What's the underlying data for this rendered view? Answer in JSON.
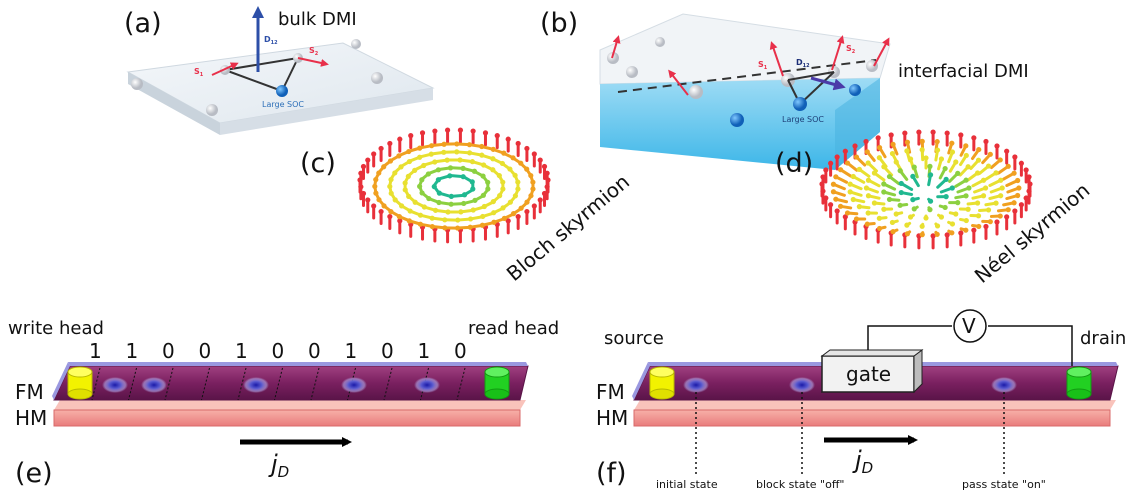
{
  "panels": {
    "a": {
      "label": "(a)",
      "title": "bulk DMI",
      "d_label": "D",
      "d_sub": "12",
      "s1": "S",
      "s1_sub": "1",
      "s2": "S",
      "s2_sub": "2",
      "soc": "Large SOC"
    },
    "b": {
      "label": "(b)",
      "title": "interfacial DMI",
      "d_label": "D",
      "d_sub": "12",
      "s1": "S",
      "s1_sub": "1",
      "s2": "S",
      "s2_sub": "2",
      "soc": "Large SOC"
    },
    "c": {
      "label": "(c)",
      "caption": "Bloch skyrmion"
    },
    "d": {
      "label": "(d)",
      "caption": "Néel skyrmion"
    },
    "e": {
      "label": "(e)",
      "write": "write head",
      "read": "read head",
      "bits": [
        "1",
        "1",
        "0",
        "0",
        "1",
        "0",
        "0",
        "1",
        "0",
        "1",
        "0"
      ],
      "fm": "FM",
      "hm": "HM",
      "current": "j",
      "current_sub": "D"
    },
    "f": {
      "label": "(f)",
      "source": "source",
      "drain": "drain",
      "gate": "gate",
      "voltmeter": "V",
      "fm": "FM",
      "hm": "HM",
      "current": "j",
      "current_sub": "D",
      "states": [
        "initial state",
        "block state \"off\"",
        "pass state \"on\""
      ]
    }
  },
  "colors": {
    "fm_track": "#7a2a6a",
    "fm_top": "#8c8ad6",
    "hm_layer": "#f08a8a",
    "write_head": "#f2f200",
    "read_head": "#20d020",
    "skyrmion": "#2a2ab0",
    "spin_arrow": "#e8304a",
    "dmi_arrow": "#2d4fa8",
    "substrate_blue": "#5cc4ec"
  }
}
